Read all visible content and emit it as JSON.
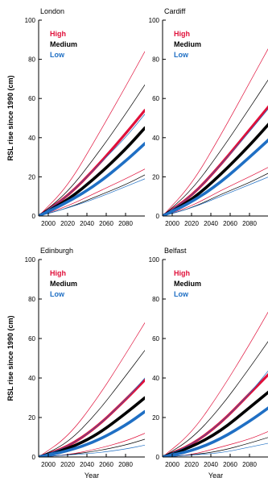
{
  "colors": {
    "high": "#e0103a",
    "medium": "#000000",
    "low": "#1f6fc4"
  },
  "chart_data": [
    {
      "type": "line",
      "title": "London",
      "ylabel": "RSL rise since 1990 (cm)",
      "xlabel": "",
      "xlim": [
        1990,
        2100
      ],
      "ylim": [
        0,
        100
      ],
      "xticks": [
        "2000",
        "2020",
        "2040",
        "2060",
        "2080"
      ],
      "yticks": [
        "0",
        "20",
        "40",
        "60",
        "80",
        "100"
      ],
      "legend": [
        "High",
        "Medium",
        "Low"
      ],
      "legend_position": "top-left",
      "series": [
        {
          "name": "High",
          "kind": "central",
          "x": [
            1990,
            2020,
            2050,
            2080,
            2100
          ],
          "values": [
            0,
            10,
            25,
            42,
            54
          ]
        },
        {
          "name": "High",
          "kind": "upper",
          "x": [
            1990,
            2020,
            2050,
            2080,
            2100
          ],
          "values": [
            0,
            15,
            40,
            66,
            84
          ]
        },
        {
          "name": "High",
          "kind": "lower",
          "x": [
            1990,
            2020,
            2050,
            2080,
            2100
          ],
          "values": [
            0,
            5,
            12,
            19,
            24
          ]
        },
        {
          "name": "Medium",
          "kind": "central",
          "x": [
            1990,
            2020,
            2050,
            2080,
            2100
          ],
          "values": [
            0,
            8,
            20,
            34,
            45
          ]
        },
        {
          "name": "Medium",
          "kind": "upper",
          "x": [
            1990,
            2020,
            2050,
            2080,
            2100
          ],
          "values": [
            0,
            12,
            31,
            52,
            67
          ]
        },
        {
          "name": "Medium",
          "kind": "lower",
          "x": [
            1990,
            2020,
            2050,
            2080,
            2100
          ],
          "values": [
            0,
            4,
            10,
            16,
            21
          ]
        },
        {
          "name": "Low",
          "kind": "central",
          "x": [
            1990,
            2020,
            2050,
            2080,
            2100
          ],
          "values": [
            0,
            7,
            16,
            28,
            37
          ]
        },
        {
          "name": "Low",
          "kind": "upper",
          "x": [
            1990,
            2020,
            2050,
            2080,
            2100
          ],
          "values": [
            0,
            10,
            25,
            40,
            52
          ]
        },
        {
          "name": "Low",
          "kind": "lower",
          "x": [
            1990,
            2020,
            2050,
            2080,
            2100
          ],
          "values": [
            0,
            4,
            9,
            15,
            19
          ]
        }
      ]
    },
    {
      "type": "line",
      "title": "Cardiff",
      "ylabel": "",
      "xlabel": "",
      "xlim": [
        1990,
        2100
      ],
      "ylim": [
        0,
        100
      ],
      "xticks": [
        "2000",
        "2020",
        "2040",
        "2060",
        "2080"
      ],
      "yticks": [
        "0",
        "20",
        "40",
        "60",
        "80",
        "100"
      ],
      "legend": [
        "High",
        "Medium",
        "Low"
      ],
      "legend_position": "top-left",
      "series": [
        {
          "name": "High",
          "kind": "central",
          "x": [
            1990,
            2020,
            2050,
            2080,
            2100
          ],
          "values": [
            0,
            10,
            26,
            44,
            56
          ]
        },
        {
          "name": "High",
          "kind": "upper",
          "x": [
            1990,
            2020,
            2050,
            2080,
            2100
          ],
          "values": [
            0,
            16,
            41,
            68,
            86
          ]
        },
        {
          "name": "High",
          "kind": "lower",
          "x": [
            1990,
            2020,
            2050,
            2080,
            2100
          ],
          "values": [
            0,
            5,
            13,
            20,
            25
          ]
        },
        {
          "name": "Medium",
          "kind": "central",
          "x": [
            1990,
            2020,
            2050,
            2080,
            2100
          ],
          "values": [
            0,
            8,
            21,
            36,
            47
          ]
        },
        {
          "name": "Medium",
          "kind": "upper",
          "x": [
            1990,
            2020,
            2050,
            2080,
            2100
          ],
          "values": [
            0,
            13,
            33,
            55,
            70
          ]
        },
        {
          "name": "Medium",
          "kind": "lower",
          "x": [
            1990,
            2020,
            2050,
            2080,
            2100
          ],
          "values": [
            0,
            4,
            11,
            17,
            22
          ]
        },
        {
          "name": "Low",
          "kind": "central",
          "x": [
            1990,
            2020,
            2050,
            2080,
            2100
          ],
          "values": [
            0,
            7,
            17,
            30,
            39
          ]
        },
        {
          "name": "Low",
          "kind": "upper",
          "x": [
            1990,
            2020,
            2050,
            2080,
            2100
          ],
          "values": [
            0,
            10,
            26,
            43,
            55
          ]
        },
        {
          "name": "Low",
          "kind": "lower",
          "x": [
            1990,
            2020,
            2050,
            2080,
            2100
          ],
          "values": [
            0,
            4,
            10,
            16,
            20
          ]
        }
      ]
    },
    {
      "type": "line",
      "title": "Edinburgh",
      "ylabel": "RSL rise since 1990 (cm)",
      "xlabel": "Year",
      "xlim": [
        1990,
        2100
      ],
      "ylim": [
        0,
        100
      ],
      "xticks": [
        "2000",
        "2020",
        "2040",
        "2060",
        "2080"
      ],
      "yticks": [
        "0",
        "20",
        "40",
        "60",
        "80",
        "100"
      ],
      "legend": [
        "High",
        "Medium",
        "Low"
      ],
      "legend_position": "top-left",
      "series": [
        {
          "name": "High",
          "kind": "central",
          "x": [
            1990,
            2020,
            2050,
            2080,
            2100
          ],
          "values": [
            0,
            5,
            15,
            29,
            39
          ]
        },
        {
          "name": "High",
          "kind": "upper",
          "x": [
            1990,
            2020,
            2050,
            2080,
            2100
          ],
          "values": [
            0,
            10,
            29,
            52,
            68
          ]
        },
        {
          "name": "High",
          "kind": "lower",
          "x": [
            1990,
            2020,
            2050,
            2080,
            2100
          ],
          "values": [
            0,
            1,
            4,
            8,
            12
          ]
        },
        {
          "name": "Medium",
          "kind": "central",
          "x": [
            1990,
            2020,
            2050,
            2080,
            2100
          ],
          "values": [
            0,
            4,
            11,
            22,
            30
          ]
        },
        {
          "name": "Medium",
          "kind": "upper",
          "x": [
            1990,
            2020,
            2050,
            2080,
            2100
          ],
          "values": [
            0,
            7,
            22,
            41,
            54
          ]
        },
        {
          "name": "Medium",
          "kind": "lower",
          "x": [
            1990,
            2020,
            2050,
            2080,
            2100
          ],
          "values": [
            0,
            1,
            3,
            6,
            9
          ]
        },
        {
          "name": "Low",
          "kind": "central",
          "x": [
            1990,
            2020,
            2050,
            2080,
            2100
          ],
          "values": [
            0,
            3,
            8,
            16,
            23
          ]
        },
        {
          "name": "Low",
          "kind": "upper",
          "x": [
            1990,
            2020,
            2050,
            2080,
            2100
          ],
          "values": [
            0,
            5,
            15,
            29,
            40
          ]
        },
        {
          "name": "Low",
          "kind": "lower",
          "x": [
            1990,
            2020,
            2050,
            2080,
            2100
          ],
          "values": [
            0,
            1,
            2,
            4,
            6
          ]
        }
      ]
    },
    {
      "type": "line",
      "title": "Belfast",
      "ylabel": "",
      "xlabel": "Year",
      "xlim": [
        1990,
        2100
      ],
      "ylim": [
        0,
        100
      ],
      "xticks": [
        "2000",
        "2020",
        "2040",
        "2060",
        "2080"
      ],
      "yticks": [
        "0",
        "20",
        "40",
        "60",
        "80",
        "100"
      ],
      "legend": [
        "High",
        "Medium",
        "Low"
      ],
      "legend_position": "top-left",
      "series": [
        {
          "name": "High",
          "kind": "central",
          "x": [
            1990,
            2020,
            2050,
            2080,
            2100
          ],
          "values": [
            0,
            6,
            17,
            32,
            42
          ]
        },
        {
          "name": "High",
          "kind": "upper",
          "x": [
            1990,
            2020,
            2050,
            2080,
            2100
          ],
          "values": [
            0,
            12,
            33,
            57,
            74
          ]
        },
        {
          "name": "High",
          "kind": "lower",
          "x": [
            1990,
            2020,
            2050,
            2080,
            2100
          ],
          "values": [
            0,
            1,
            5,
            9,
            13
          ]
        },
        {
          "name": "Medium",
          "kind": "central",
          "x": [
            1990,
            2020,
            2050,
            2080,
            2100
          ],
          "values": [
            0,
            5,
            13,
            25,
            33
          ]
        },
        {
          "name": "Medium",
          "kind": "upper",
          "x": [
            1990,
            2020,
            2050,
            2080,
            2100
          ],
          "values": [
            0,
            9,
            25,
            45,
            59
          ]
        },
        {
          "name": "Medium",
          "kind": "lower",
          "x": [
            1990,
            2020,
            2050,
            2080,
            2100
          ],
          "values": [
            0,
            1,
            3,
            7,
            10
          ]
        },
        {
          "name": "Low",
          "kind": "central",
          "x": [
            1990,
            2020,
            2050,
            2080,
            2100
          ],
          "values": [
            0,
            3,
            9,
            18,
            25
          ]
        },
        {
          "name": "Low",
          "kind": "upper",
          "x": [
            1990,
            2020,
            2050,
            2080,
            2100
          ],
          "values": [
            0,
            6,
            17,
            32,
            44
          ]
        },
        {
          "name": "Low",
          "kind": "lower",
          "x": [
            1990,
            2020,
            2050,
            2080,
            2100
          ],
          "values": [
            0,
            1,
            2,
            5,
            7
          ]
        }
      ]
    }
  ]
}
